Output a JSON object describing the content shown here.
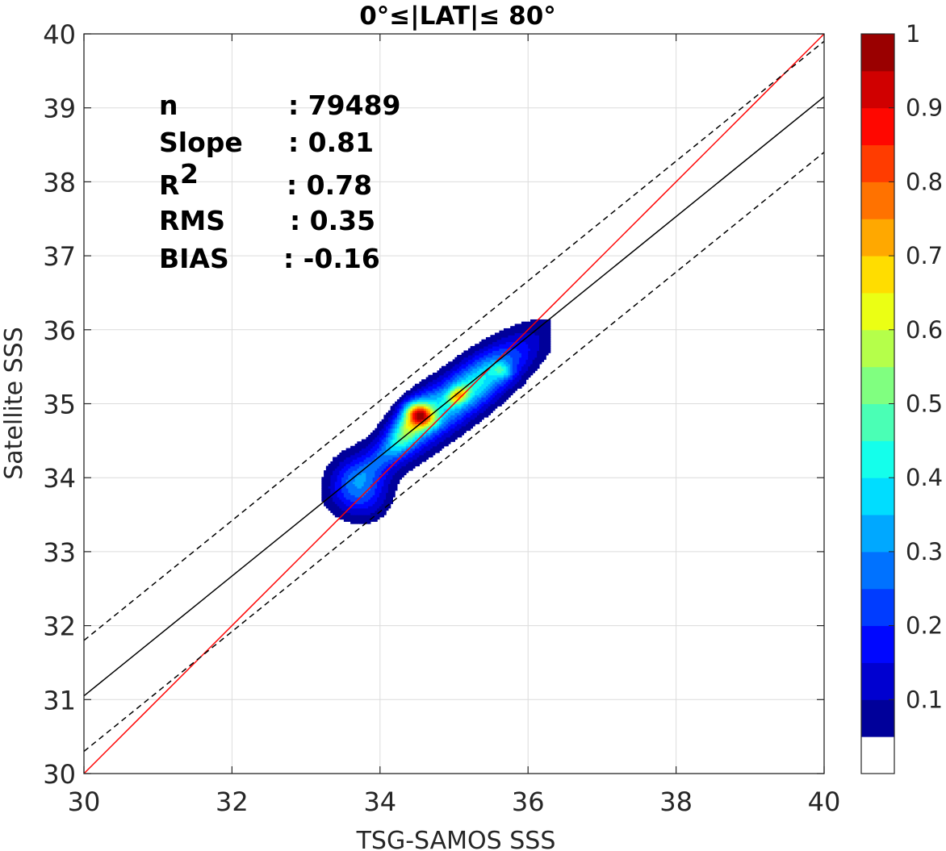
{
  "chart_data": {
    "type": "heatmap",
    "subtype": "filled-contour density scatter comparison",
    "title": "0°≤|LAT|≤ 80°",
    "xlabel": "TSG-SAMOS SSS",
    "ylabel": "Satellite SSS",
    "xlim": [
      30,
      40
    ],
    "ylim": [
      30,
      40
    ],
    "xticks": [
      "30",
      "32",
      "34",
      "36",
      "38",
      "40"
    ],
    "yticks": [
      "30",
      "31",
      "32",
      "33",
      "34",
      "35",
      "36",
      "37",
      "38",
      "39",
      "40"
    ],
    "grid": true,
    "stats": [
      {
        "key": "n",
        "value": ": 79489"
      },
      {
        "key": "Slope",
        "value": ": 0.81"
      },
      {
        "key": "R",
        "sup": "2",
        "value": ": 0.78"
      },
      {
        "key": "RMS",
        "value": ": 0.35"
      },
      {
        "key": "BIAS",
        "value": ": -0.16"
      }
    ],
    "lines": [
      {
        "style": "one-to-one",
        "color": "#ff0000",
        "slope": 1.0,
        "intercept": 0.0
      },
      {
        "style": "regression",
        "color": "#000000",
        "slope": 0.81,
        "intercept": 6.75
      },
      {
        "style": "upper-bound-dashed",
        "color": "#000000",
        "slope": 0.81,
        "intercept": 7.5
      },
      {
        "style": "lower-bound-dashed",
        "color": "#000000",
        "slope": 0.81,
        "intercept": 6.0
      }
    ],
    "density_peaks": [
      {
        "x": 34.55,
        "y": 34.85,
        "value": 1.0
      },
      {
        "x": 35.05,
        "y": 35.12,
        "value": 0.65
      },
      {
        "x": 35.65,
        "y": 35.45,
        "value": 0.42
      },
      {
        "x": 33.72,
        "y": 33.88,
        "value": 0.32
      }
    ],
    "colorbar": {
      "min": 0,
      "max": 1,
      "step": 0.05,
      "tick_labels": [
        "0.1",
        "0.2",
        "0.3",
        "0.4",
        "0.5",
        "0.6",
        "0.7",
        "0.8",
        "0.9",
        "1"
      ],
      "colormap": "jet",
      "lowest_color": "#ffffff"
    }
  }
}
